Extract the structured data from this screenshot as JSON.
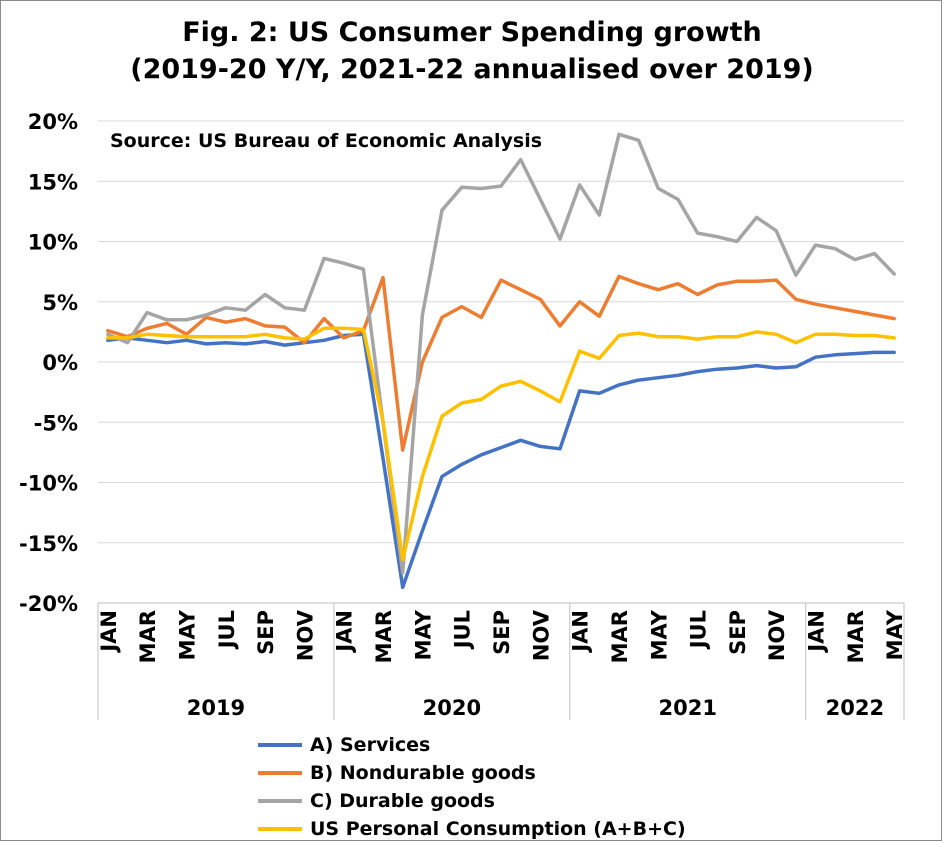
{
  "chart_data": {
    "type": "line",
    "title": "Fig. 2: US Consumer Spending growth\n(2019-20 Y/Y, 2021-22 annualised over 2019)",
    "annotation": "Source: US Bureau of Economic Analysis",
    "ylim": [
      -20,
      20
    ],
    "yticks": [
      "20%",
      "15%",
      "10%",
      "5%",
      "0%",
      "-5%",
      "-10%",
      "-15%",
      "-20%"
    ],
    "grid": true,
    "legend_position": "bottom",
    "x": [
      "2019-01",
      "2019-02",
      "2019-03",
      "2019-04",
      "2019-05",
      "2019-06",
      "2019-07",
      "2019-08",
      "2019-09",
      "2019-10",
      "2019-11",
      "2019-12",
      "2020-01",
      "2020-02",
      "2020-03",
      "2020-04",
      "2020-05",
      "2020-06",
      "2020-07",
      "2020-08",
      "2020-09",
      "2020-10",
      "2020-11",
      "2020-12",
      "2021-01",
      "2021-02",
      "2021-03",
      "2021-04",
      "2021-05",
      "2021-06",
      "2021-07",
      "2021-08",
      "2021-09",
      "2021-10",
      "2021-11",
      "2021-12",
      "2022-01",
      "2022-02",
      "2022-03",
      "2022-04",
      "2022-05"
    ],
    "month_tick_labels": [
      "JAN",
      "MAR",
      "MAY",
      "JUL",
      "SEP",
      "NOV",
      "JAN",
      "MAR",
      "MAY",
      "JUL",
      "SEP",
      "NOV",
      "JAN",
      "MAR",
      "MAY",
      "JUL",
      "SEP",
      "NOV",
      "JAN",
      "MAR",
      "MAY"
    ],
    "year_labels": [
      "2019",
      "2020",
      "2021",
      "2022"
    ],
    "series": [
      {
        "name": "A) Services",
        "color": "#4472C4",
        "values": [
          1.8,
          2.0,
          1.8,
          1.6,
          1.8,
          1.5,
          1.6,
          1.5,
          1.7,
          1.4,
          1.6,
          1.8,
          2.2,
          2.3,
          -8.0,
          -18.7,
          -14.0,
          -9.5,
          -8.5,
          -7.7,
          -7.1,
          -6.5,
          -7.0,
          -7.2,
          -2.4,
          -2.6,
          -1.9,
          -1.5,
          -1.3,
          -1.1,
          -0.8,
          -0.6,
          -0.5,
          -0.3,
          -0.5,
          -0.4,
          0.4,
          0.6,
          0.7,
          0.8,
          0.8
        ]
      },
      {
        "name": "B) Nondurable goods",
        "color": "#ED7D31",
        "values": [
          2.6,
          2.1,
          2.8,
          3.2,
          2.3,
          3.7,
          3.3,
          3.6,
          3.0,
          2.9,
          1.6,
          3.6,
          2.0,
          2.6,
          7.0,
          -7.3,
          0.0,
          3.7,
          4.6,
          3.7,
          6.8,
          6.0,
          5.2,
          3.0,
          5.0,
          3.8,
          7.1,
          6.5,
          6.0,
          6.5,
          5.6,
          6.4,
          6.7,
          6.7,
          6.8,
          5.2,
          4.8,
          4.5,
          4.2,
          3.9,
          3.6
        ]
      },
      {
        "name": "C) Durable goods",
        "color": "#A5A5A5",
        "values": [
          2.3,
          1.6,
          4.1,
          3.5,
          3.5,
          3.9,
          4.5,
          4.3,
          5.6,
          4.5,
          4.3,
          8.6,
          8.2,
          7.7,
          -5.0,
          -17.5,
          3.9,
          12.6,
          14.5,
          14.4,
          14.6,
          16.8,
          13.5,
          10.2,
          14.7,
          12.2,
          18.9,
          18.4,
          14.4,
          13.5,
          10.7,
          10.4,
          10.0,
          12.0,
          10.9,
          7.2,
          9.7,
          9.4,
          8.5,
          9.0,
          7.3
        ]
      },
      {
        "name": "US Personal Consumption (A+B+C)",
        "color": "#FFC000",
        "values": [
          2.0,
          2.0,
          2.3,
          2.2,
          2.1,
          2.1,
          2.1,
          2.1,
          2.3,
          2.0,
          1.9,
          2.8,
          2.8,
          2.7,
          -4.9,
          -16.4,
          -9.5,
          -4.5,
          -3.4,
          -3.1,
          -2.0,
          -1.6,
          -2.4,
          -3.3,
          0.9,
          0.3,
          2.2,
          2.4,
          2.1,
          2.1,
          1.9,
          2.1,
          2.1,
          2.5,
          2.3,
          1.6,
          2.3,
          2.3,
          2.2,
          2.2,
          2.0
        ]
      }
    ]
  }
}
